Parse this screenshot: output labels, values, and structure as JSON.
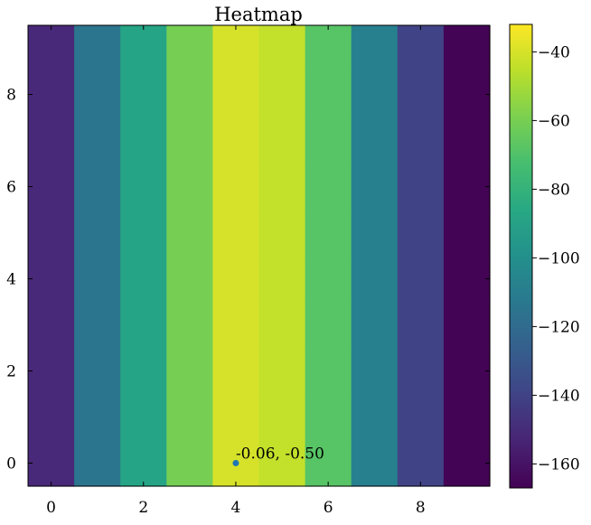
{
  "chart_data": {
    "type": "heatmap",
    "title": "Heatmap",
    "xlabel": "",
    "ylabel": "",
    "xlim": [
      -0.5,
      9.5
    ],
    "ylim": [
      -0.5,
      9.5
    ],
    "xticks": [
      0,
      2,
      4,
      6,
      8
    ],
    "yticks": [
      0,
      2,
      4,
      6,
      8
    ],
    "x": [
      0,
      1,
      2,
      3,
      4,
      5,
      6,
      7,
      8,
      9
    ],
    "rows": 10,
    "column_values": [
      -152,
      -114,
      -88,
      -60,
      -40,
      -44,
      -68,
      -108,
      -140,
      -166
    ],
    "colormap": "viridis",
    "colorbar": {
      "range": [
        -167,
        -32
      ],
      "ticks": [
        -40,
        -60,
        -80,
        -100,
        -120,
        -140,
        -160
      ],
      "tick_labels": [
        "−40",
        "−60",
        "−80",
        "−100",
        "−120",
        "−140",
        "−160"
      ]
    },
    "marker": {
      "x": 4,
      "y": 0,
      "color": "#1f77b4"
    },
    "annotation": "-0.06, -0.50",
    "grid": false
  }
}
